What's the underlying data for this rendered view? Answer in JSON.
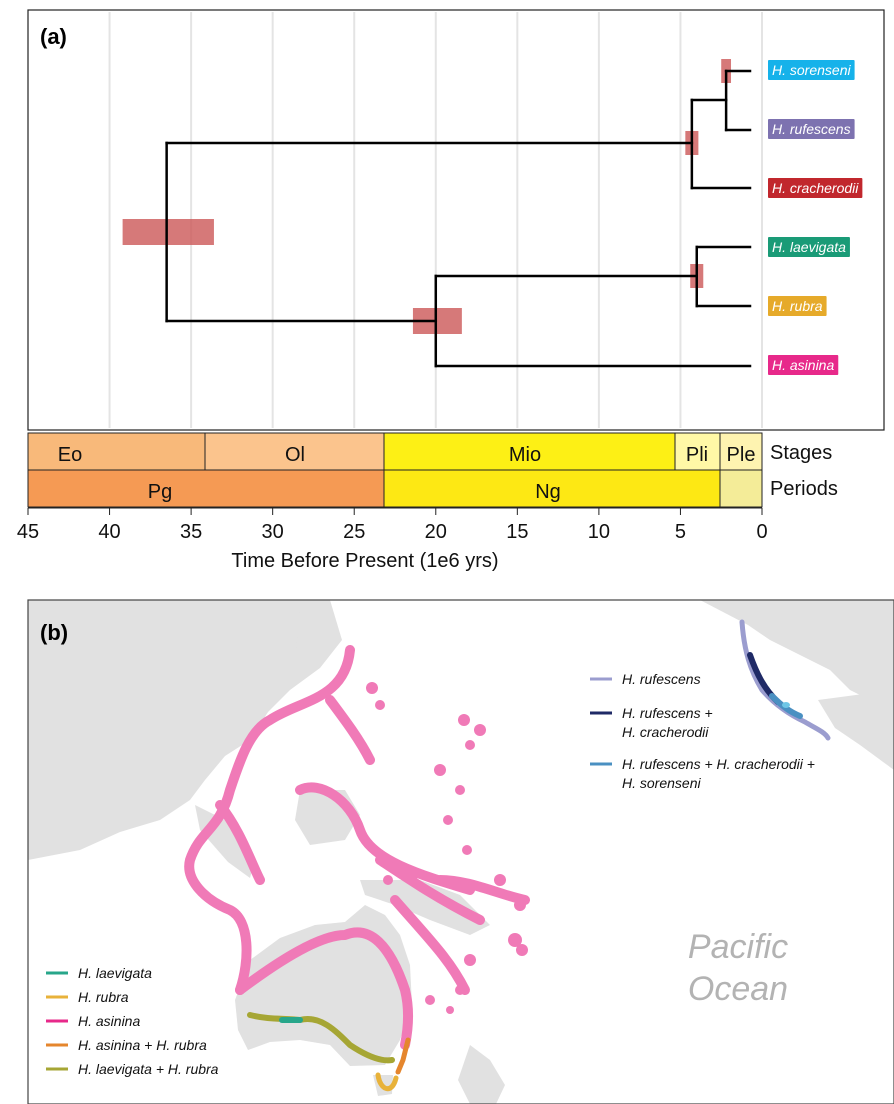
{
  "panel_a": {
    "label": "(a)",
    "axis": {
      "ticks": [
        "45",
        "40",
        "35",
        "30",
        "25",
        "20",
        "15",
        "10",
        "5",
        "0"
      ],
      "label": "Time Before Present (1e6 yrs)"
    },
    "timescale": {
      "row_labels": {
        "stages": "Stages",
        "periods": "Periods"
      },
      "stages": [
        "Eo",
        "Ol",
        "Mio",
        "Pli",
        "Ple"
      ],
      "periods": [
        "Pg",
        "Ng"
      ]
    },
    "tips": [
      {
        "name": "H. sorenseni",
        "color": "#16b2ea"
      },
      {
        "name": "H. rufescens",
        "color": "#7d72b0"
      },
      {
        "name": "H. cracherodii",
        "color": "#c1272d"
      },
      {
        "name": "H. laevigata",
        "color": "#1a9b77"
      },
      {
        "name": "H. rubra",
        "color": "#e6aa2a"
      },
      {
        "name": "H. asinina",
        "color": "#e7298a"
      }
    ],
    "node_ages_mya": {
      "root": 36.5,
      "north_pacific_clade": 4.3,
      "sorenseni_rufescens": 2.2,
      "indo_pacific_clade": 20,
      "laevigata_rubra": 4.0
    },
    "node_uncertainty_mya": {
      "root": [
        39.2,
        33.6
      ],
      "north_pacific_clade": [
        4.7,
        3.9
      ],
      "sorenseni_rufescens": [
        2.5,
        1.9
      ],
      "indo_pacific_clade": [
        21.4,
        18.4
      ],
      "laevigata_rubra": [
        4.4,
        3.6
      ]
    }
  },
  "panel_b": {
    "label": "(b)",
    "ocean_label": [
      "Pacific",
      "Ocean"
    ],
    "legend_top": [
      {
        "lines": [
          "H. rufescens"
        ],
        "color": "#9b9dcf"
      },
      {
        "lines": [
          "H. rufescens +",
          "H. cracherodii"
        ],
        "color": "#1f2a66"
      },
      {
        "lines": [
          "H. rufescens + H. cracherodii +",
          "H. sorenseni"
        ],
        "color": "#4a90c2"
      }
    ],
    "legend_bottom": [
      {
        "label": "H. laevigata",
        "color": "#27a68a"
      },
      {
        "label": "H. rubra",
        "color": "#e8b23a"
      },
      {
        "label": "H. asinina",
        "color": "#e7298a"
      },
      {
        "label": "H. asinina + H. rubra",
        "color": "#e5862d"
      },
      {
        "label": "H. laevigata + H. rubra",
        "color": "#a6a634"
      }
    ]
  }
}
